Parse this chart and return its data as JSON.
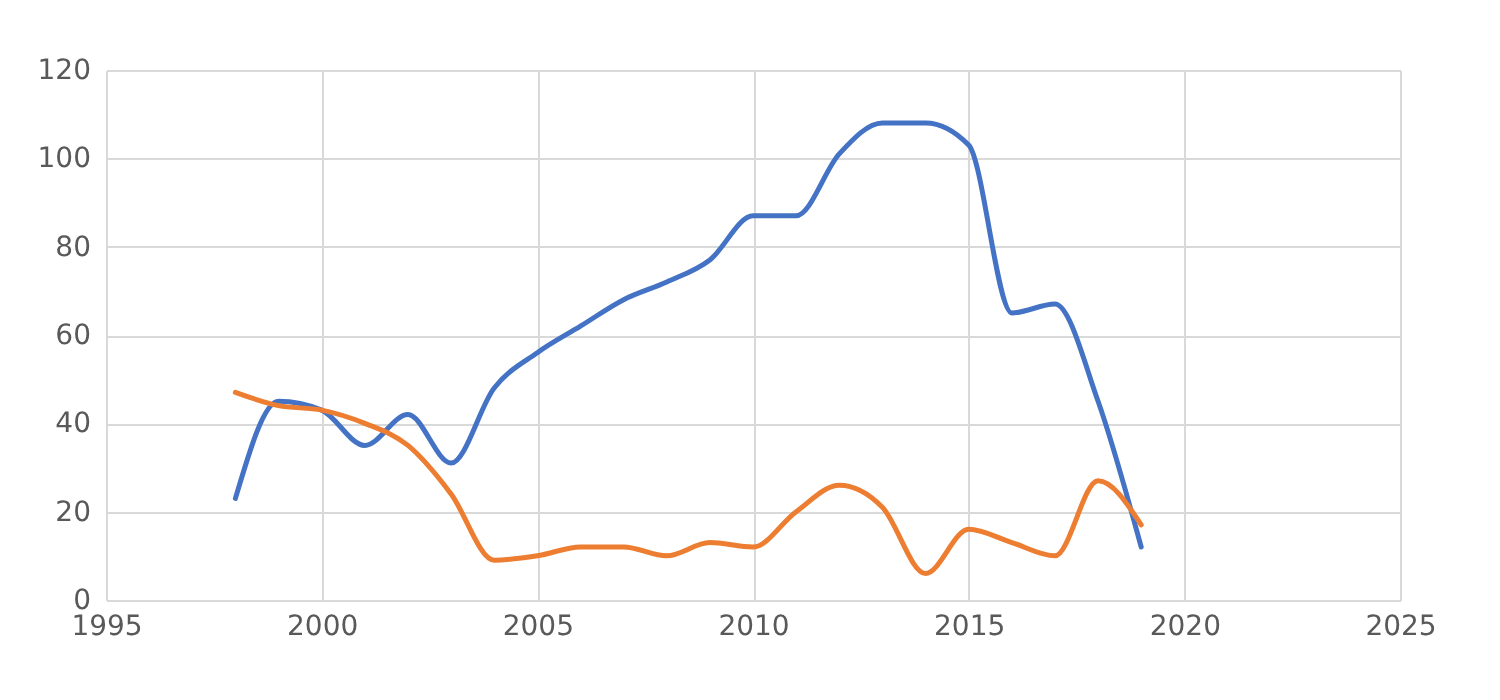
{
  "chart_data": {
    "type": "line",
    "x": [
      1998,
      1999,
      2000,
      2001,
      2002,
      2003,
      2004,
      2005,
      2006,
      2007,
      2008,
      2009,
      2010,
      2011,
      2012,
      2013,
      2014,
      2015,
      2016,
      2017,
      2018,
      2019
    ],
    "series": [
      {
        "color": "#4472c4",
        "values": [
          23,
          45,
          43,
          35,
          42,
          31,
          48,
          56,
          62,
          68,
          72,
          77,
          87,
          87,
          101,
          108,
          108,
          103,
          65,
          67,
          45,
          12
        ]
      },
      {
        "color": "#ed7d31",
        "values": [
          47,
          44,
          43,
          40,
          35,
          24,
          9,
          10,
          12,
          12,
          10,
          13,
          12,
          20,
          26,
          21,
          6,
          16,
          13,
          10,
          27,
          17
        ]
      }
    ],
    "xlim": [
      1995,
      2025
    ],
    "xticks": [
      1995,
      2000,
      2005,
      2010,
      2015,
      2020,
      2025
    ],
    "ylim": [
      0,
      120
    ],
    "yticks": [
      0,
      20,
      40,
      60,
      80,
      100,
      120
    ],
    "grid": true,
    "marker": "none",
    "line_style": "solid"
  }
}
